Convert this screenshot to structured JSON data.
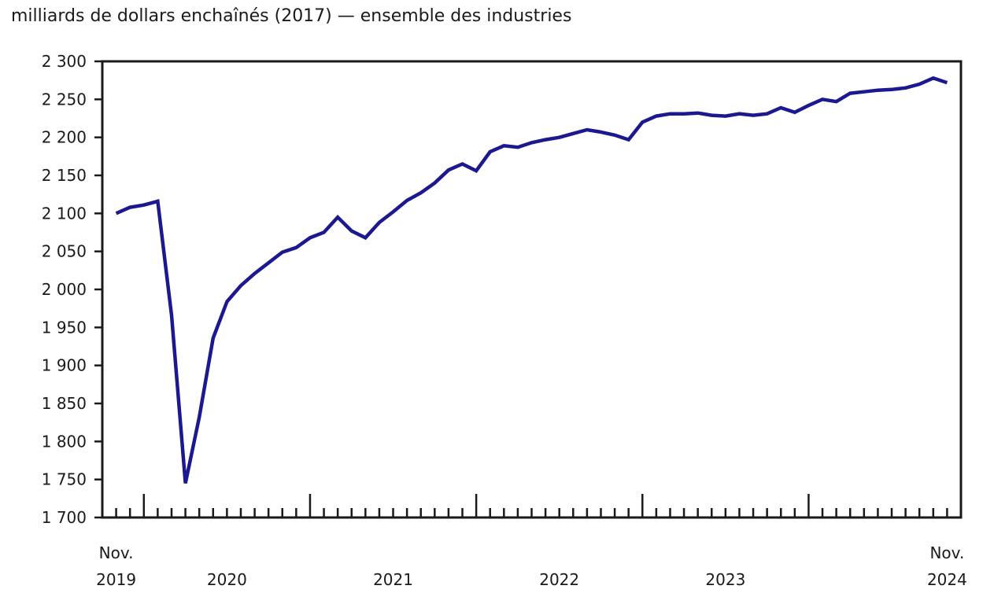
{
  "page": {
    "title": "milliards de dollars enchaînés (2017) — ensemble des industries"
  },
  "chart_data": {
    "type": "line",
    "title": "milliards de dollars enchaînés (2017) — ensemble des industries",
    "series_name": "ensemble des industries",
    "x": [
      "2019-11",
      "2019-12",
      "2020-01",
      "2020-02",
      "2020-03",
      "2020-04",
      "2020-05",
      "2020-06",
      "2020-07",
      "2020-08",
      "2020-09",
      "2020-10",
      "2020-11",
      "2020-12",
      "2021-01",
      "2021-02",
      "2021-03",
      "2021-04",
      "2021-05",
      "2021-06",
      "2021-07",
      "2021-08",
      "2021-09",
      "2021-10",
      "2021-11",
      "2021-12",
      "2022-01",
      "2022-02",
      "2022-03",
      "2022-04",
      "2022-05",
      "2022-06",
      "2022-07",
      "2022-08",
      "2022-09",
      "2022-10",
      "2022-11",
      "2022-12",
      "2023-01",
      "2023-02",
      "2023-03",
      "2023-04",
      "2023-05",
      "2023-06",
      "2023-07",
      "2023-08",
      "2023-09",
      "2023-10",
      "2023-11",
      "2023-12",
      "2024-01",
      "2024-02",
      "2024-03",
      "2024-04",
      "2024-05",
      "2024-06",
      "2024-07",
      "2024-08",
      "2024-09",
      "2024-10",
      "2024-11"
    ],
    "values": [
      2100,
      2108,
      2111,
      2116,
      1966,
      1745,
      1832,
      1936,
      1984,
      2005,
      2021,
      2035,
      2049,
      2055,
      2068,
      2075,
      2095,
      2077,
      2068,
      2088,
      2102,
      2117,
      2127,
      2140,
      2157,
      2165,
      2156,
      2181,
      2189,
      2187,
      2193,
      2197,
      2200,
      2205,
      2210,
      2207,
      2203,
      2197,
      2220,
      2228,
      2231,
      2231,
      2232,
      2229,
      2228,
      2231,
      2229,
      2231,
      2239,
      2233,
      2242,
      2250,
      2247,
      2258,
      2260,
      2262,
      2263,
      2265,
      2270,
      2278,
      2272
    ],
    "ylim": [
      1700,
      2300
    ],
    "ytick_step": 50,
    "y_tick_labels": [
      "1 700",
      "1 750",
      "1 800",
      "1 850",
      "1 900",
      "1 950",
      "2 000",
      "2 050",
      "2 100",
      "2 150",
      "2 200",
      "2 250",
      "2 300"
    ],
    "x_axis": {
      "start_month_label": "Nov.",
      "start_year_label": "2019",
      "mid_year_labels": [
        "2020",
        "2021",
        "2022",
        "2023"
      ],
      "end_month_label": "Nov.",
      "end_year_label": "2024",
      "minor_ticks": "monthly",
      "major_ticks": "january-of-each-year"
    },
    "grid": "off",
    "legend": "none",
    "line_color": "#1c1990",
    "axis_color": "#1a1a1a"
  }
}
